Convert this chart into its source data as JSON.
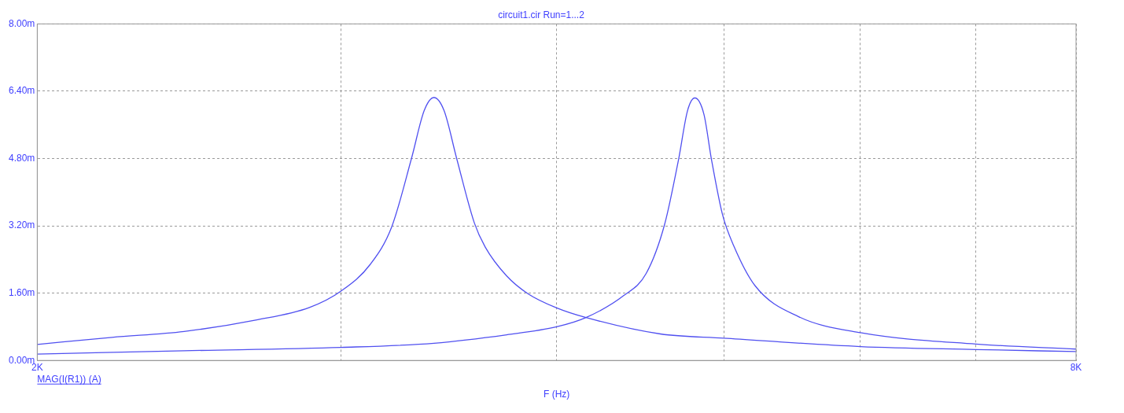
{
  "chart_data": {
    "type": "line",
    "title": "circuit1.cir Run=1...2",
    "xlabel": "F (Hz)",
    "annotations": [
      "MAG(I(R1)) (A)"
    ],
    "log": "x",
    "grid": true,
    "legend": false,
    "marker": "none",
    "line_style": "solid",
    "xlim": [
      2000,
      8000
    ],
    "xticks": [
      {
        "value": 2000,
        "label": "2K"
      },
      {
        "value": 3000,
        "label": null
      },
      {
        "value": 4000,
        "label": null
      },
      {
        "value": 5000,
        "label": null
      },
      {
        "value": 6000,
        "label": null
      },
      {
        "value": 7000,
        "label": null
      },
      {
        "value": 8000,
        "label": "8K"
      }
    ],
    "ylim": [
      0,
      8
    ],
    "yticks": [
      {
        "value": 0,
        "label": "0.00m"
      },
      {
        "value": 1.6,
        "label": "1.60m"
      },
      {
        "value": 3.2,
        "label": "3.20m"
      },
      {
        "value": 4.8,
        "label": "4.80m"
      },
      {
        "value": 6.4,
        "label": "6.40m"
      },
      {
        "value": 8,
        "label": "8.00m"
      }
    ],
    "series": [
      {
        "color": "#5050f0",
        "x": [
          2000,
          2210,
          2433,
          2677,
          2876,
          3000,
          3120,
          3210,
          3296,
          3352,
          3396,
          3442,
          3500,
          3584,
          3636,
          3742,
          3852,
          4000,
          4160,
          4594,
          5000,
          6000,
          7000,
          8000
        ],
        "values": [
          0.38,
          0.55,
          0.69,
          0.96,
          1.26,
          1.65,
          2.29,
          3.18,
          4.81,
          5.94,
          6.25,
          5.94,
          4.81,
          3.27,
          2.7,
          2.01,
          1.58,
          1.25,
          1.02,
          0.63,
          0.53,
          0.33,
          0.26,
          0.21
        ]
      },
      {
        "color": "#5050f0",
        "x": [
          2000,
          2433,
          3000,
          3396,
          3742,
          4000,
          4160,
          4374,
          4508,
          4619,
          4707,
          4763,
          4810,
          4869,
          4918,
          4991,
          5066,
          5212,
          5525,
          6000,
          7000,
          8000
        ],
        "values": [
          0.15,
          0.23,
          0.31,
          0.41,
          0.61,
          0.8,
          1.02,
          1.54,
          2.07,
          3.22,
          4.78,
          5.93,
          6.24,
          5.85,
          4.78,
          3.47,
          2.73,
          1.78,
          1.04,
          0.66,
          0.39,
          0.27
        ]
      }
    ]
  }
}
